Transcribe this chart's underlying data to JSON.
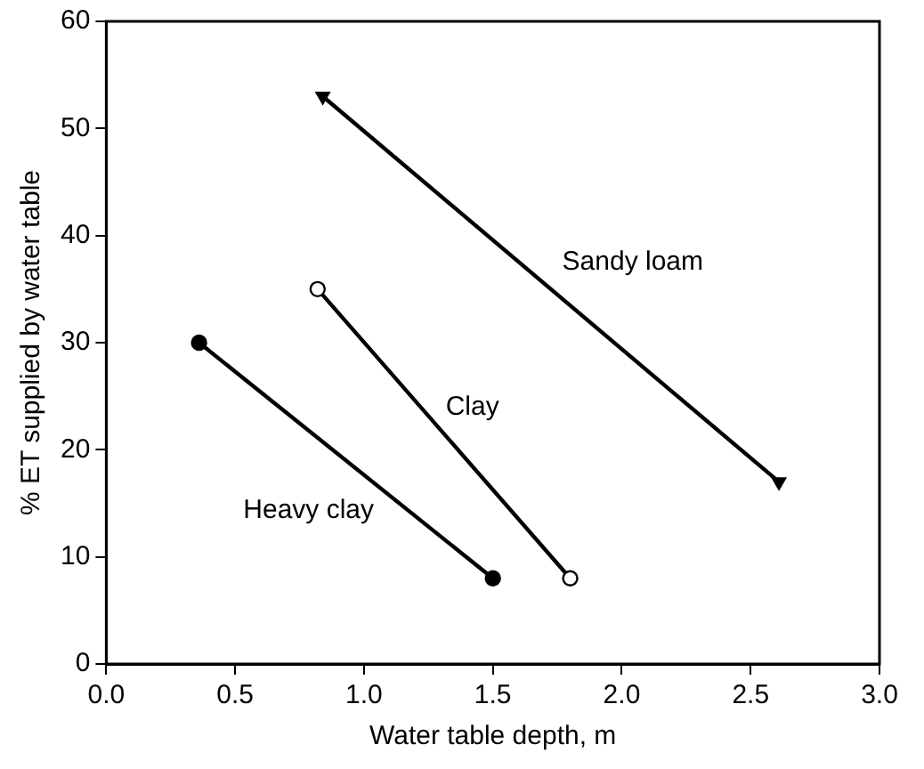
{
  "chart_data": {
    "type": "line",
    "xlabel": "Water table depth, m",
    "ylabel": "% ET supplied by water table",
    "xlim": [
      0,
      3
    ],
    "xticks": [
      {
        "value": 0,
        "label": "0.0"
      },
      {
        "value": 0.5,
        "label": "0.5"
      },
      {
        "value": 1,
        "label": "1.0"
      },
      {
        "value": 1.5,
        "label": "1.5"
      },
      {
        "value": 2,
        "label": "2.0"
      },
      {
        "value": 2.5,
        "label": "2.5"
      },
      {
        "value": 3,
        "label": "3.0"
      }
    ],
    "ylim": [
      0,
      60
    ],
    "yticks": [
      0,
      10,
      20,
      30,
      40,
      50,
      60
    ],
    "grid": false,
    "legend": false,
    "line_style": "solid",
    "series": [
      {
        "name": "Heavy clay",
        "color": "#000000",
        "marker": "circle",
        "x": [
          0.36,
          1.5
        ],
        "values": [
          30,
          8
        ]
      },
      {
        "name": "Clay",
        "color": "#000000",
        "marker": "circle",
        "x": [
          0.82,
          1.8
        ],
        "values": [
          35,
          8
        ]
      },
      {
        "name": "Sandy loam",
        "color": "#000000",
        "marker": "triangle",
        "x": [
          0.84,
          2.61
        ],
        "values": [
          53,
          17
        ]
      }
    ]
  }
}
